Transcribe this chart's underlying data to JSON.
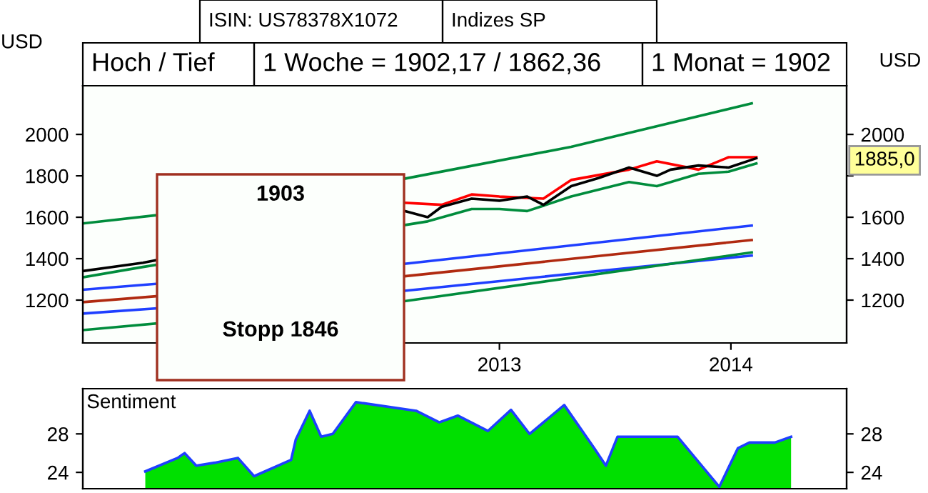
{
  "chart_data": [
    {
      "type": "line",
      "ylabel": "USD",
      "y2label": "USD",
      "annotations": [
        "ISIN: US78378X1072",
        "Indizes SP",
        "Hoch / Tief",
        "1 Woche = 1902,17 / 1862,36",
        "1 Monat = 1902",
        "1885,0"
      ],
      "xlim": [
        2011.7,
        2015.0
      ],
      "xticks": [
        {
          "value": 2013.5,
          "label": "2013"
        },
        {
          "value": 2014.5,
          "label": "2014"
        }
      ],
      "ylim": [
        993,
        2235
      ],
      "yticks": [
        1200,
        1400,
        1600,
        1800,
        2000
      ],
      "y2lim": [
        993,
        2235
      ],
      "y2ticks": [
        1200,
        1400,
        1600,
        {
          "value": 1800,
          "label": null
        },
        2000
      ],
      "grid": false,
      "legend": false,
      "series": [
        {
          "color": "#008c3c",
          "x": [
            2011.7,
            2012.02,
            2013.09,
            2013.81,
            2014.59
          ],
          "values": [
            1570,
            1610,
            1786,
            1940,
            2150
          ]
        },
        {
          "color": "#1f3fff",
          "x": [
            2011.7,
            2013.09,
            2014.59
          ],
          "values": [
            1250,
            1375,
            1560
          ]
        },
        {
          "color": "#b02a10",
          "x": [
            2011.7,
            2013.09,
            2014.59
          ],
          "values": [
            1190,
            1315,
            1490
          ]
        },
        {
          "color": "#1f3fff",
          "x": [
            2011.7,
            2013.09,
            2014.59
          ],
          "values": [
            1135,
            1245,
            1415
          ]
        },
        {
          "color": "#008c3c",
          "x": [
            2011.7,
            2013.09,
            2014.59
          ],
          "values": [
            1055,
            1195,
            1430
          ]
        },
        {
          "color": "#ff0000",
          "x": [
            2013.09,
            2013.25,
            2013.38,
            2013.5,
            2013.69,
            2013.81,
            2014.06,
            2014.18,
            2014.36,
            2014.49,
            2014.61
          ],
          "values": [
            1670,
            1660,
            1710,
            1700,
            1690,
            1780,
            1830,
            1870,
            1830,
            1890,
            1890
          ]
        },
        {
          "color": "#008c3c",
          "x": [
            2011.7,
            2011.96,
            2013.19,
            2013.38,
            2013.5,
            2013.62,
            2013.81,
            2014.06,
            2014.18,
            2014.36,
            2014.49,
            2014.61
          ],
          "values": [
            1310,
            1360,
            1580,
            1640,
            1640,
            1630,
            1700,
            1770,
            1750,
            1810,
            1820,
            1860
          ]
        },
        {
          "color": "#000000",
          "x": [
            2011.7,
            2011.96,
            2013.09,
            2013.19,
            2013.25,
            2013.38,
            2013.5,
            2013.62,
            2013.69,
            2013.81,
            2013.93,
            2014.06,
            2014.18,
            2014.24,
            2014.36,
            2014.49,
            2014.61
          ],
          "values": [
            1340,
            1380,
            1630,
            1600,
            1650,
            1690,
            1680,
            1700,
            1660,
            1750,
            1790,
            1840,
            1800,
            1830,
            1850,
            1840,
            1885
          ]
        }
      ]
    },
    {
      "type": "area",
      "title": "Sentiment",
      "xlim": [
        2011.7,
        2015.0
      ],
      "ylim": [
        22.3,
        32.7
      ],
      "yticks": [
        24,
        28
      ],
      "y2lim": [
        22.3,
        32.7
      ],
      "y2ticks": [
        24,
        28
      ],
      "tick_labels": "y",
      "grid": false,
      "series": [
        {
          "color": "#00e000",
          "x": [
            2011.97,
            2012.11,
            2012.14,
            2012.19,
            2012.27,
            2012.37,
            2012.44,
            2012.6,
            2012.62,
            2012.68,
            2012.73,
            2012.78,
            2012.88,
            2013.14,
            2013.24,
            2013.32,
            2013.45,
            2013.55,
            2013.63,
            2013.78,
            2013.91,
            2013.96,
            2014.01,
            2014.27,
            2014.45,
            2014.53,
            2014.58,
            2014.69,
            2014.76
          ],
          "values": [
            24.1,
            25.5,
            26.0,
            24.7,
            25.0,
            25.5,
            23.6,
            25.3,
            27.4,
            30.4,
            27.7,
            28.0,
            31.3,
            30.4,
            29.2,
            29.9,
            28.3,
            30.5,
            28.0,
            31.0,
            26.5,
            24.7,
            27.7,
            27.7,
            22.5,
            26.5,
            27.1,
            27.1,
            27.7
          ]
        },
        {
          "type": "line",
          "color": "#1f3fff",
          "x": [
            2011.97,
            2012.11,
            2012.14,
            2012.19,
            2012.27,
            2012.37,
            2012.44,
            2012.6,
            2012.62,
            2012.68,
            2012.73,
            2012.78,
            2012.88,
            2013.14,
            2013.24,
            2013.32,
            2013.45,
            2013.55,
            2013.63,
            2013.78,
            2013.91,
            2013.96,
            2014.01,
            2014.27,
            2014.45,
            2014.53,
            2014.58,
            2014.69,
            2014.76
          ],
          "values": [
            24.1,
            25.5,
            26.0,
            24.7,
            25.0,
            25.5,
            23.6,
            25.3,
            27.4,
            30.4,
            27.7,
            28.0,
            31.3,
            30.4,
            29.2,
            29.9,
            28.3,
            30.5,
            28.0,
            31.0,
            26.5,
            24.7,
            27.7,
            27.7,
            22.5,
            26.5,
            27.1,
            27.1,
            27.7
          ]
        }
      ]
    },
    {
      "type": "other",
      "title": "1903",
      "annotations": [
        "Stopp 1846"
      ]
    }
  ]
}
